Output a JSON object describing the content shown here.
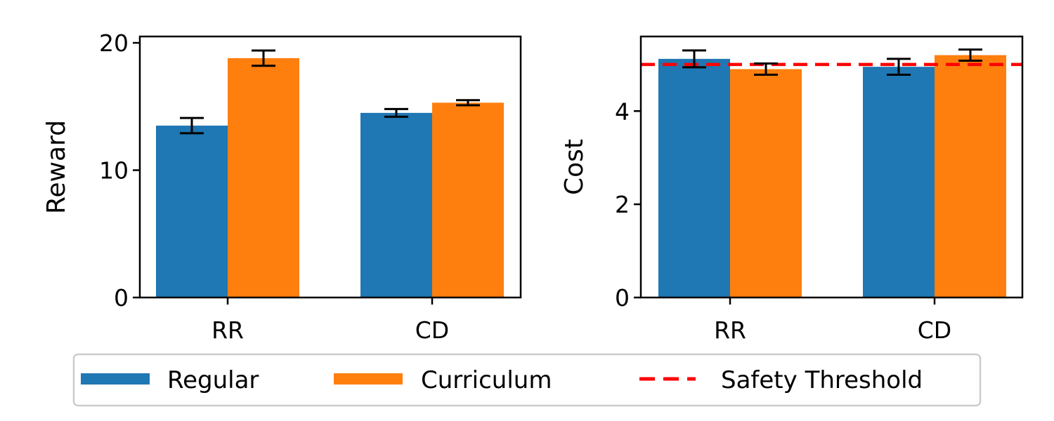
{
  "chart_data": [
    {
      "type": "bar",
      "categories": [
        "RR",
        "CD"
      ],
      "series": [
        {
          "name": "Regular",
          "values": [
            13.5,
            14.5
          ],
          "errors": [
            0.6,
            0.3
          ]
        },
        {
          "name": "Curriculum",
          "values": [
            18.8,
            15.3
          ],
          "errors": [
            0.6,
            0.2
          ]
        }
      ],
      "xlabel": "",
      "ylabel": "Reward",
      "ylim": [
        0,
        20.5
      ],
      "yticks": [
        0,
        10,
        20
      ],
      "grid": false
    },
    {
      "type": "bar",
      "categories": [
        "RR",
        "CD"
      ],
      "series": [
        {
          "name": "Regular",
          "values": [
            5.12,
            4.95
          ],
          "errors": [
            0.18,
            0.17
          ]
        },
        {
          "name": "Curriculum",
          "values": [
            4.9,
            5.2
          ],
          "errors": [
            0.12,
            0.12
          ]
        }
      ],
      "threshold": {
        "name": "Safety Threshold",
        "value": 5.0,
        "color": "#ff0000",
        "style": "dashed"
      },
      "xlabel": "",
      "ylabel": "Cost",
      "ylim": [
        0,
        5.6
      ],
      "yticks": [
        0,
        2,
        4
      ],
      "grid": false
    }
  ],
  "legend": {
    "placement": "bottom-center",
    "entries": [
      {
        "label": "Regular",
        "color": "#1f77b4",
        "kind": "patch"
      },
      {
        "label": "Curriculum",
        "color": "#ff7f0e",
        "kind": "patch"
      },
      {
        "label": "Safety Threshold",
        "color": "#ff0000",
        "kind": "dashed-line"
      }
    ]
  },
  "colors": {
    "regular": "#1f77b4",
    "curriculum": "#ff7f0e",
    "threshold": "#ff0000",
    "errorbar": "#000000"
  }
}
